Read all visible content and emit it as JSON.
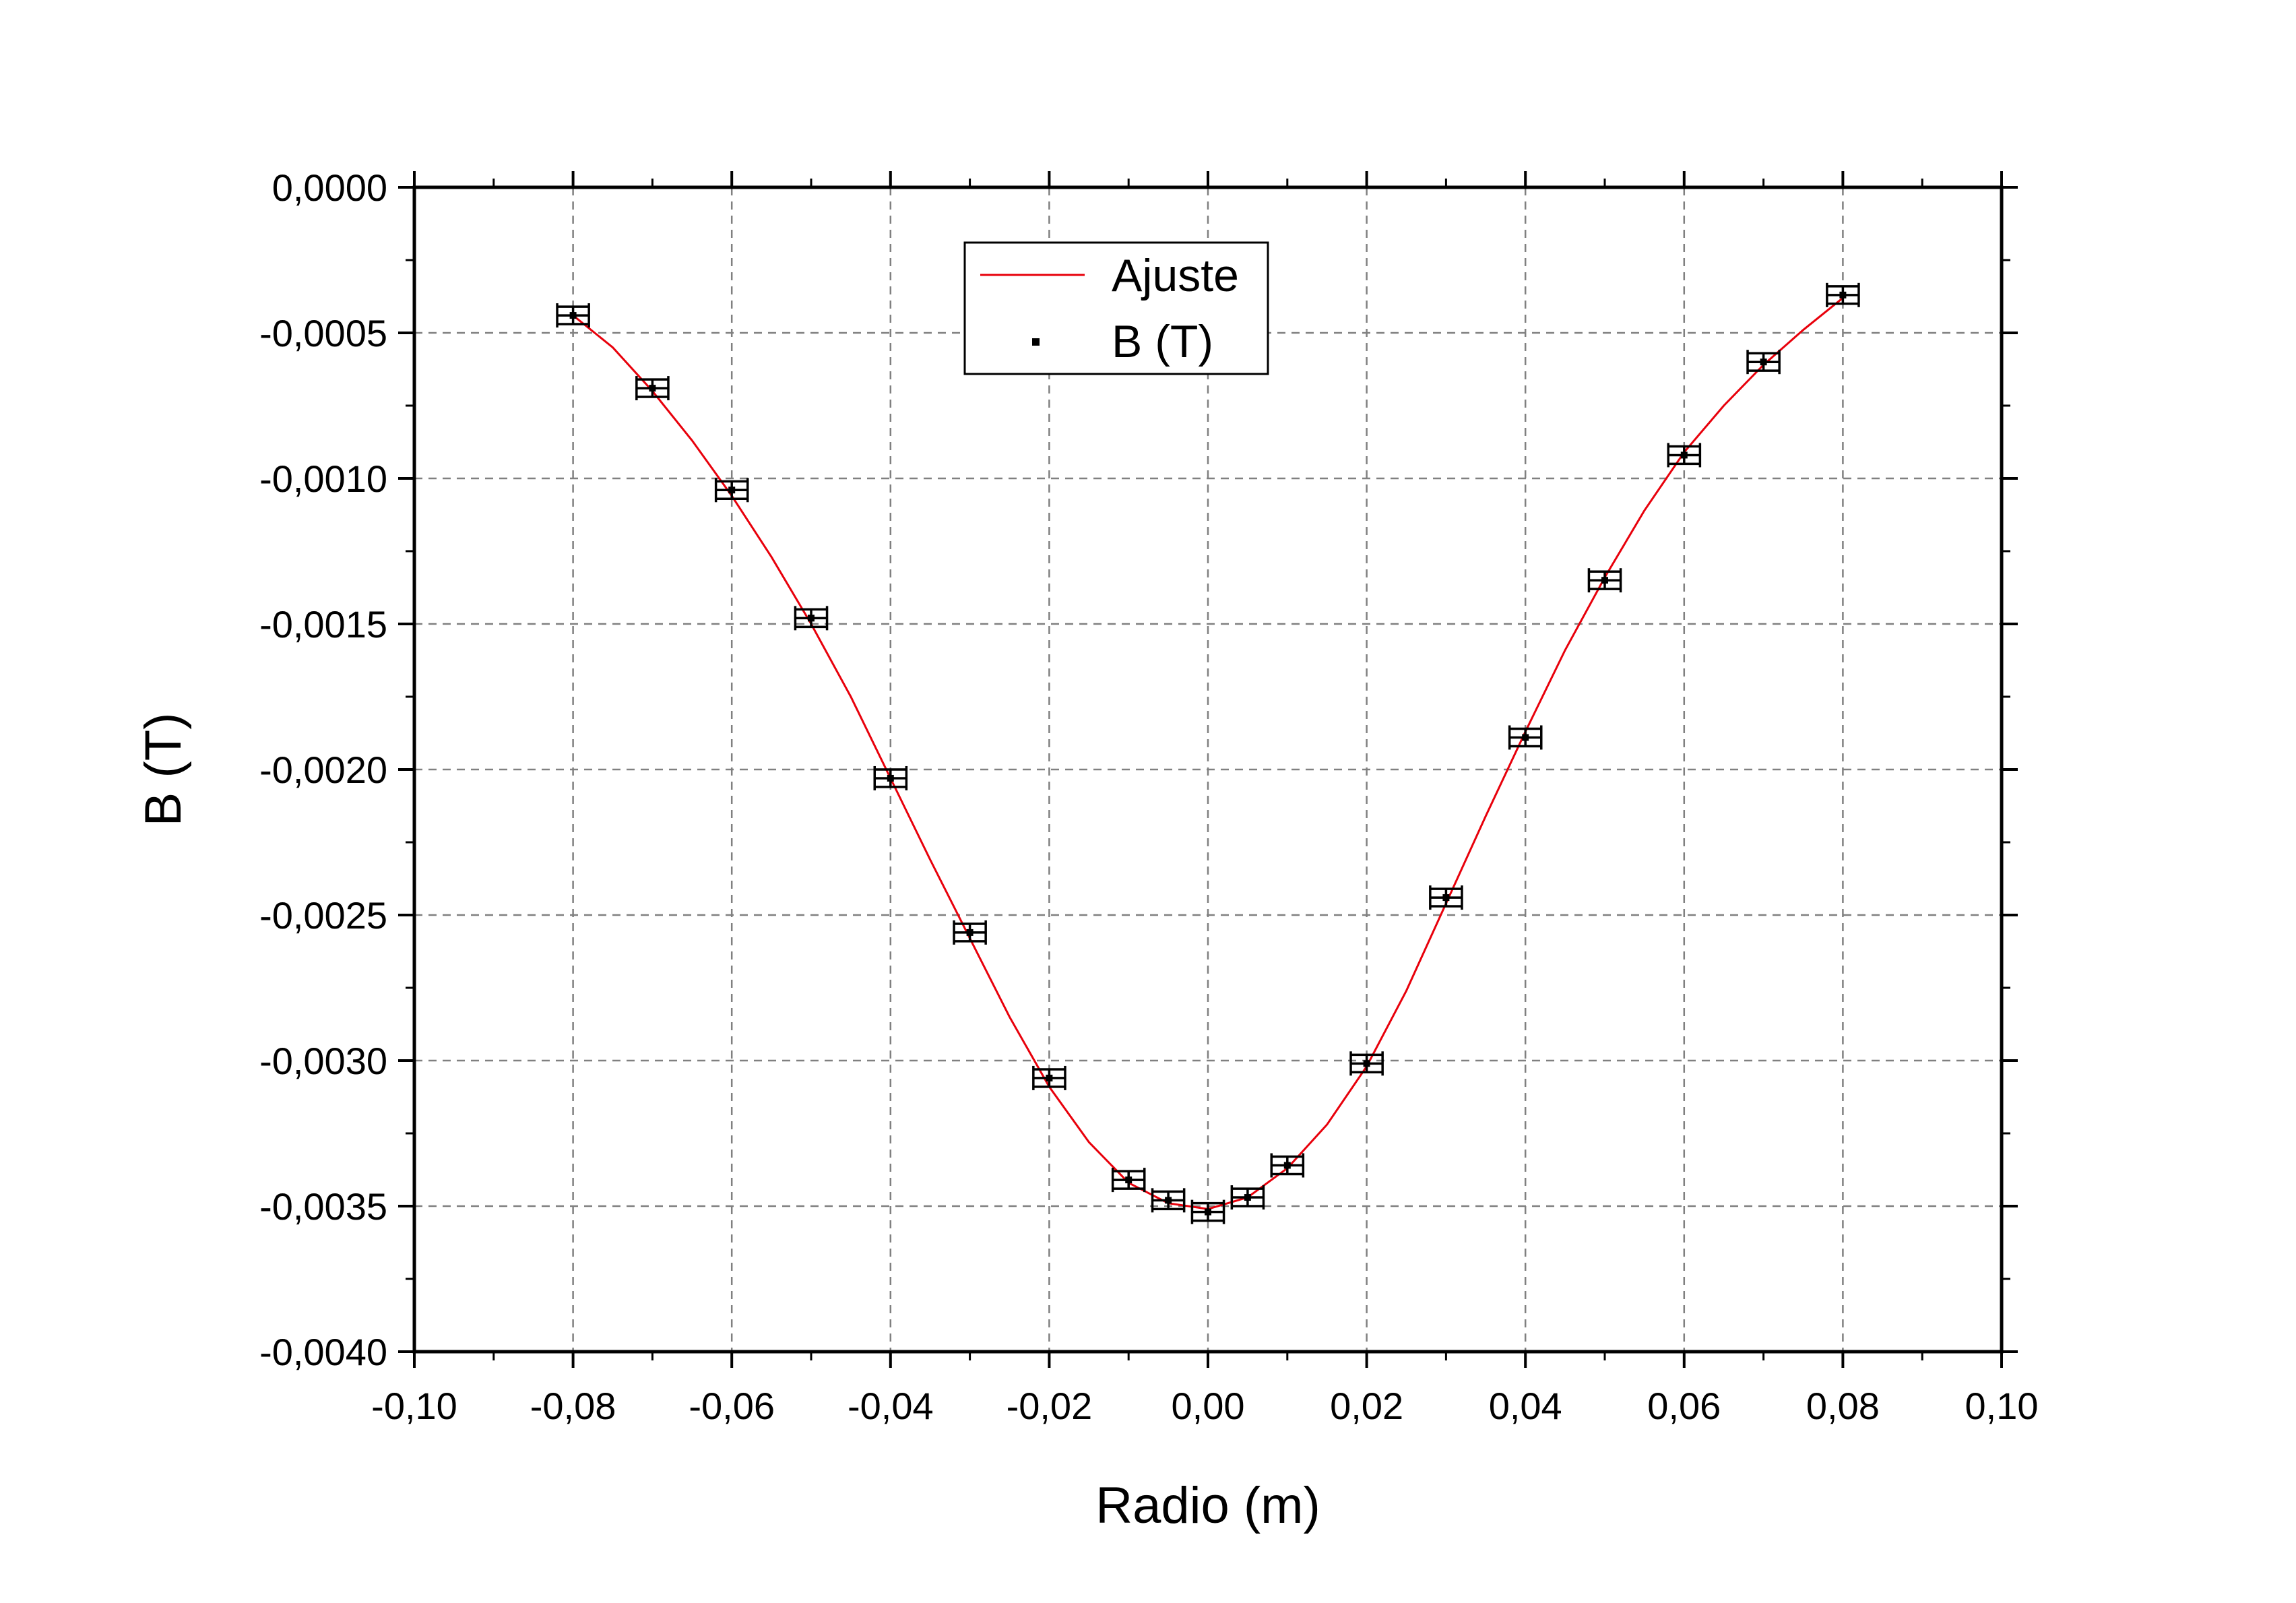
{
  "chart_data": {
    "type": "scatter",
    "title": "",
    "xlabel": "Radio (m)",
    "ylabel": "B (T)",
    "xlim": [
      -0.1,
      0.1
    ],
    "ylim": [
      -0.004,
      0.0
    ],
    "grid": true,
    "legend_position": "top-center",
    "x_ticks": [
      -0.1,
      -0.08,
      -0.06,
      -0.04,
      -0.02,
      0.0,
      0.02,
      0.04,
      0.06,
      0.08,
      0.1
    ],
    "x_tick_labels": [
      "-0,10",
      "-0,08",
      "-0,06",
      "-0,04",
      "-0,02",
      "0,00",
      "0,02",
      "0,04",
      "0,06",
      "0,08",
      "0,10"
    ],
    "y_ticks": [
      0.0,
      -0.0005,
      -0.001,
      -0.0015,
      -0.002,
      -0.0025,
      -0.003,
      -0.0035,
      -0.004
    ],
    "y_tick_labels": [
      "0,0000",
      "-0,0005",
      "-0,0010",
      "-0,0015",
      "-0,0020",
      "-0,0025",
      "-0,0030",
      "-0,0035",
      "-0,0040"
    ],
    "series": [
      {
        "name": "Ajuste",
        "kind": "line",
        "color": "#e8000b",
        "x": [
          -0.08,
          -0.075,
          -0.07,
          -0.065,
          -0.06,
          -0.055,
          -0.05,
          -0.045,
          -0.04,
          -0.035,
          -0.03,
          -0.025,
          -0.02,
          -0.015,
          -0.01,
          -0.005,
          0.0,
          0.005,
          0.01,
          0.015,
          0.02,
          0.025,
          0.03,
          0.035,
          0.04,
          0.045,
          0.05,
          0.055,
          0.06,
          0.065,
          0.07,
          0.075,
          0.08
        ],
        "y": [
          -0.00044,
          -0.00055,
          -0.0007,
          -0.00087,
          -0.00106,
          -0.00127,
          -0.0015,
          -0.00175,
          -0.00203,
          -0.00231,
          -0.00258,
          -0.00285,
          -0.00309,
          -0.00328,
          -0.00342,
          -0.00349,
          -0.00351,
          -0.00347,
          -0.00337,
          -0.00322,
          -0.00302,
          -0.00276,
          -0.00246,
          -0.00216,
          -0.00187,
          -0.00159,
          -0.00134,
          -0.00111,
          -0.00091,
          -0.00075,
          -0.00061,
          -0.00049,
          -0.00038
        ]
      },
      {
        "name": "B (T)",
        "kind": "scatter",
        "color": "#000000",
        "x": [
          -0.08,
          -0.07,
          -0.06,
          -0.05,
          -0.04,
          -0.03,
          -0.02,
          -0.01,
          -0.005,
          0.0,
          0.005,
          0.01,
          0.02,
          0.03,
          0.04,
          0.05,
          0.06,
          0.07,
          0.08
        ],
        "y": [
          -0.00044,
          -0.00069,
          -0.00104,
          -0.00148,
          -0.00203,
          -0.00256,
          -0.00306,
          -0.00341,
          -0.00348,
          -0.00352,
          -0.00347,
          -0.00336,
          -0.00301,
          -0.00244,
          -0.00189,
          -0.00135,
          -0.00092,
          -0.0006,
          -0.00037
        ],
        "x_error": 0.002,
        "y_error": 3e-05
      }
    ]
  }
}
